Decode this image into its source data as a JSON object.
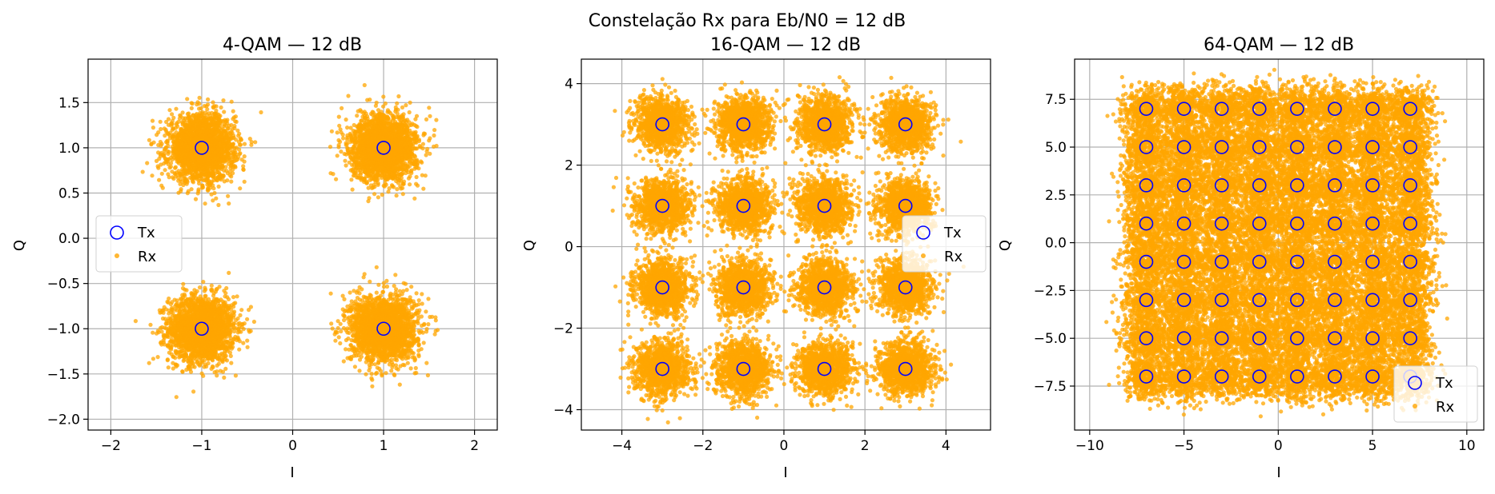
{
  "figure": {
    "suptitle": "Constelação Rx para Eb/N0 = 12 dB"
  },
  "colors": {
    "rx": "#ffa500",
    "tx": "#0000ff",
    "grid": "#b0b0b0",
    "axes": "#000000"
  },
  "chart_data": [
    {
      "type": "scatter",
      "title": "4-QAM — 12 dB",
      "xlabel": "I",
      "ylabel": "Q",
      "xlim": [
        -2.25,
        2.25
      ],
      "ylim": [
        -2.12,
        1.98
      ],
      "xticks": [
        -2,
        -1,
        0,
        1,
        2
      ],
      "xtick_labels": [
        "−2",
        "−1",
        "0",
        "1",
        "2"
      ],
      "yticks": [
        -2.0,
        -1.5,
        -1.0,
        -0.5,
        0.0,
        0.5,
        1.0,
        1.5
      ],
      "ytick_labels": [
        "−2.0",
        "−1.5",
        "−1.0",
        "−0.5",
        "0.0",
        "0.5",
        "1.0",
        "1.5"
      ],
      "grid": true,
      "legend_position": "center-left",
      "noise_sigma": 0.18,
      "series": [
        {
          "name": "Tx",
          "marker": "hollow-circle",
          "levels": [
            -1,
            1
          ]
        },
        {
          "name": "Rx",
          "marker": "dot",
          "levels": [
            -1,
            1
          ]
        }
      ]
    },
    {
      "type": "scatter",
      "title": "16-QAM — 12 dB",
      "xlabel": "I",
      "ylabel": "Q",
      "xlim": [
        -5.0,
        5.1
      ],
      "ylim": [
        -4.5,
        4.6
      ],
      "xticks": [
        -4,
        -2,
        0,
        2,
        4
      ],
      "xtick_labels": [
        "−4",
        "−2",
        "0",
        "2",
        "4"
      ],
      "yticks": [
        -4,
        -2,
        0,
        2,
        4
      ],
      "ytick_labels": [
        "−4",
        "−2",
        "0",
        "2",
        "4"
      ],
      "grid": true,
      "legend_position": "center-right",
      "noise_sigma": 0.33,
      "series": [
        {
          "name": "Tx",
          "marker": "hollow-circle",
          "levels": [
            -3,
            -1,
            1,
            3
          ]
        },
        {
          "name": "Rx",
          "marker": "dot",
          "levels": [
            -3,
            -1,
            1,
            3
          ]
        }
      ]
    },
    {
      "type": "scatter",
      "title": "64-QAM — 12 dB",
      "xlabel": "I",
      "ylabel": "Q",
      "xlim": [
        -10.8,
        10.9
      ],
      "ylim": [
        -9.8,
        9.6
      ],
      "xticks": [
        -10,
        -5,
        0,
        5,
        10
      ],
      "xtick_labels": [
        "−10",
        "−5",
        "0",
        "5",
        "10"
      ],
      "yticks": [
        -7.5,
        -5.0,
        -2.5,
        0.0,
        2.5,
        5.0,
        7.5
      ],
      "ytick_labels": [
        "−7.5",
        "−5.0",
        "−2.5",
        "0.0",
        "2.5",
        "5.0",
        "7.5"
      ],
      "grid": true,
      "legend_position": "lower-right",
      "noise_sigma": 0.62,
      "series": [
        {
          "name": "Tx",
          "marker": "hollow-circle",
          "levels": [
            -7,
            -5,
            -3,
            -1,
            1,
            3,
            5,
            7
          ]
        },
        {
          "name": "Rx",
          "marker": "dot",
          "levels": [
            -7,
            -5,
            -3,
            -1,
            1,
            3,
            5,
            7
          ]
        }
      ]
    }
  ]
}
